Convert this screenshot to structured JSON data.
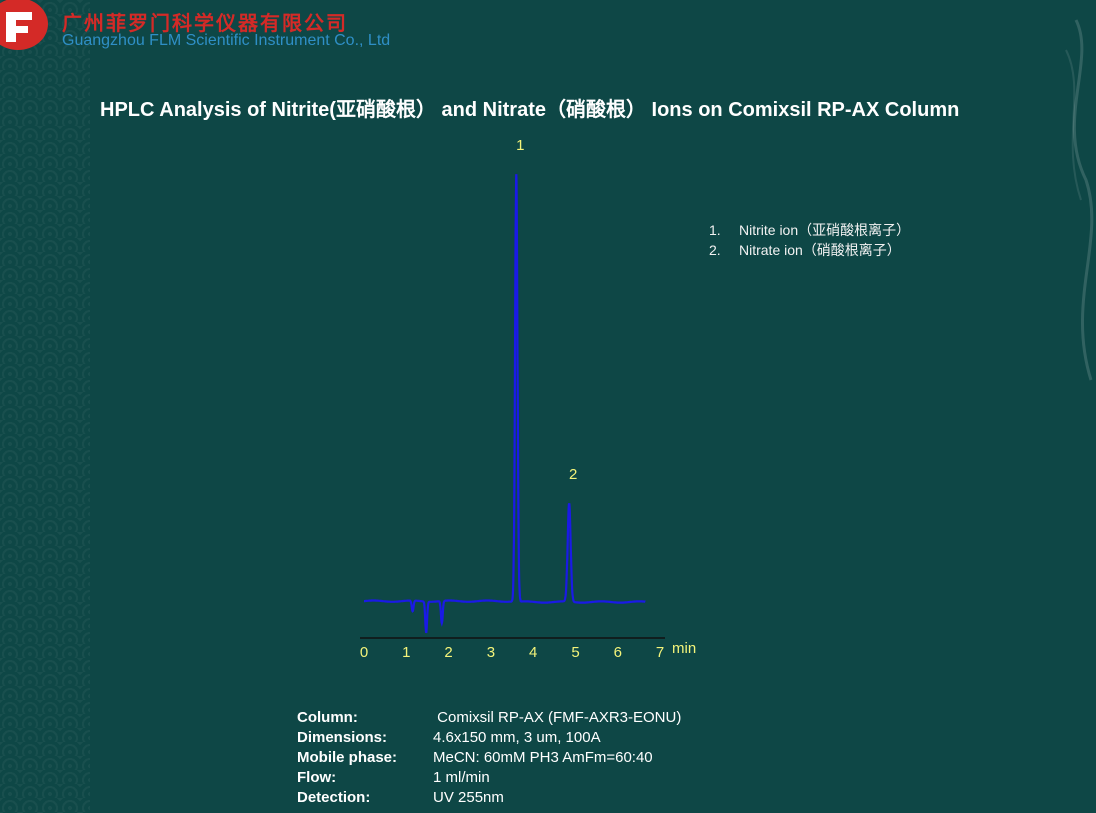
{
  "header": {
    "company_cn": "广州菲罗门科学仪器有限公司",
    "company_en": "Guangzhou FLM Scientific Instrument Co., Ltd",
    "brand_color": "#d42a27"
  },
  "title": "HPLC Analysis of Nitrite(亚硝酸根） and Nitrate（硝酸根） Ions on Comixsil RP-AX Column",
  "legend": [
    {
      "num": "1.",
      "label": "Nitrite ion（亚硝酸根离子）"
    },
    {
      "num": "2.",
      "label": "Nitrate ion（硝酸根离子）"
    }
  ],
  "chart_data": {
    "type": "line",
    "xlabel": "min",
    "xlim": [
      0,
      7
    ],
    "xticks": [
      "0",
      "1",
      "2",
      "3",
      "4",
      "5",
      "6",
      "7"
    ],
    "y_axis_shown": false,
    "grid": false,
    "line_color": "#1a1ae6",
    "peaks": [
      {
        "label": "1",
        "time": 3.6,
        "relative_height": 100
      },
      {
        "label": "2",
        "time": 4.85,
        "relative_height": 23
      }
    ],
    "dips": [
      {
        "time": 1.15,
        "relative_height": -2.5
      },
      {
        "time": 1.47,
        "relative_height": -7.3
      },
      {
        "time": 1.84,
        "relative_height": -5.2
      }
    ],
    "trace_range": [
      0,
      6.65
    ]
  },
  "conditions": [
    {
      "key": "Column:",
      "value": " Comixsil RP-AX (FMF-AXR3-EONU)"
    },
    {
      "key": "Dimensions:",
      "value": "4.6x150 mm, 3 um, 100A"
    },
    {
      "key": "Mobile phase:",
      "value": "MeCN: 60mM PH3 AmFm=60:40"
    },
    {
      "key": "Flow:",
      "value": "1 ml/min"
    },
    {
      "key": "Detection:",
      "value": "UV 255nm"
    }
  ]
}
